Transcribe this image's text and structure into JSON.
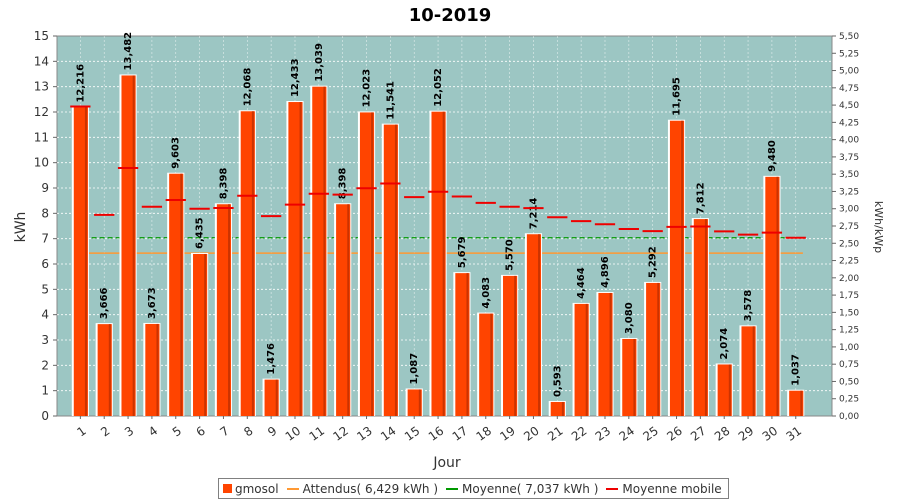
{
  "chart_data": {
    "type": "bar",
    "title": "10-2019",
    "xlabel": "Jour",
    "ylabel": "kWh",
    "y2label": "kWh/kWp",
    "ylim": [
      0,
      15
    ],
    "y2lim": [
      0,
      5.5
    ],
    "yticks": [
      "0",
      "1",
      "2",
      "3",
      "4",
      "5",
      "6",
      "7",
      "8",
      "9",
      "10",
      "11",
      "12",
      "13",
      "14",
      "15"
    ],
    "y2ticks": [
      "0,00",
      "0,25",
      "0,50",
      "0,75",
      "1,00",
      "1,25",
      "1,50",
      "1,75",
      "2,00",
      "2,25",
      "2,50",
      "2,75",
      "3,00",
      "3,25",
      "3,50",
      "3,75",
      "4,00",
      "4,25",
      "4,50",
      "4,75",
      "5,00",
      "5,25",
      "5,50"
    ],
    "categories": [
      "1",
      "2",
      "3",
      "4",
      "5",
      "6",
      "7",
      "8",
      "9",
      "10",
      "11",
      "12",
      "13",
      "14",
      "15",
      "16",
      "17",
      "18",
      "19",
      "20",
      "21",
      "22",
      "23",
      "24",
      "25",
      "26",
      "27",
      "28",
      "29",
      "30",
      "31"
    ],
    "series": [
      {
        "name": "gmosol",
        "values": [
          12.216,
          3.666,
          13.482,
          3.673,
          9.603,
          6.435,
          8.398,
          12.068,
          1.476,
          12.433,
          13.039,
          8.398,
          12.023,
          11.541,
          1.087,
          12.052,
          5.679,
          4.083,
          5.57,
          7.214,
          0.593,
          4.464,
          4.896,
          3.08,
          5.292,
          11.695,
          7.812,
          2.074,
          3.578,
          9.48,
          1.037
        ],
        "labels": [
          "12,216",
          "3,666",
          "13,482",
          "3,673",
          "9,603",
          "6,435",
          "8,398",
          "12,068",
          "1,476",
          "12,433",
          "13,039",
          "8,398",
          "12,023",
          "11,541",
          "1,087",
          "12,052",
          "5,679",
          "4,083",
          "5,570",
          "7,214",
          "0,593",
          "4,464",
          "4,896",
          "3,080",
          "5,292",
          "11,695",
          "7,812",
          "2,074",
          "3,578",
          "9,480",
          "1,037"
        ],
        "color": "#ff4400"
      },
      {
        "name": "Attendus( 6,429 kWh )",
        "value": 6.429,
        "color": "#ff9933"
      },
      {
        "name": "Moyenne( 7,037 kWh )",
        "value": 7.037,
        "color": "#009900"
      },
      {
        "name": "Moyenne mobile",
        "values": [
          12.216,
          7.941,
          9.788,
          8.259,
          8.527,
          8.179,
          8.21,
          8.692,
          7.89,
          8.344,
          8.771,
          8.74,
          8.991,
          9.178,
          8.639,
          8.853,
          8.666,
          8.412,
          8.262,
          8.208,
          7.845,
          7.691,
          7.569,
          7.382,
          7.298,
          7.467,
          7.48,
          7.288,
          7.16,
          7.237,
          7.037
        ],
        "color": "#ee0000"
      }
    ],
    "legend_position": "bottom",
    "grid": true,
    "plot_background": "#9cc6c3"
  }
}
